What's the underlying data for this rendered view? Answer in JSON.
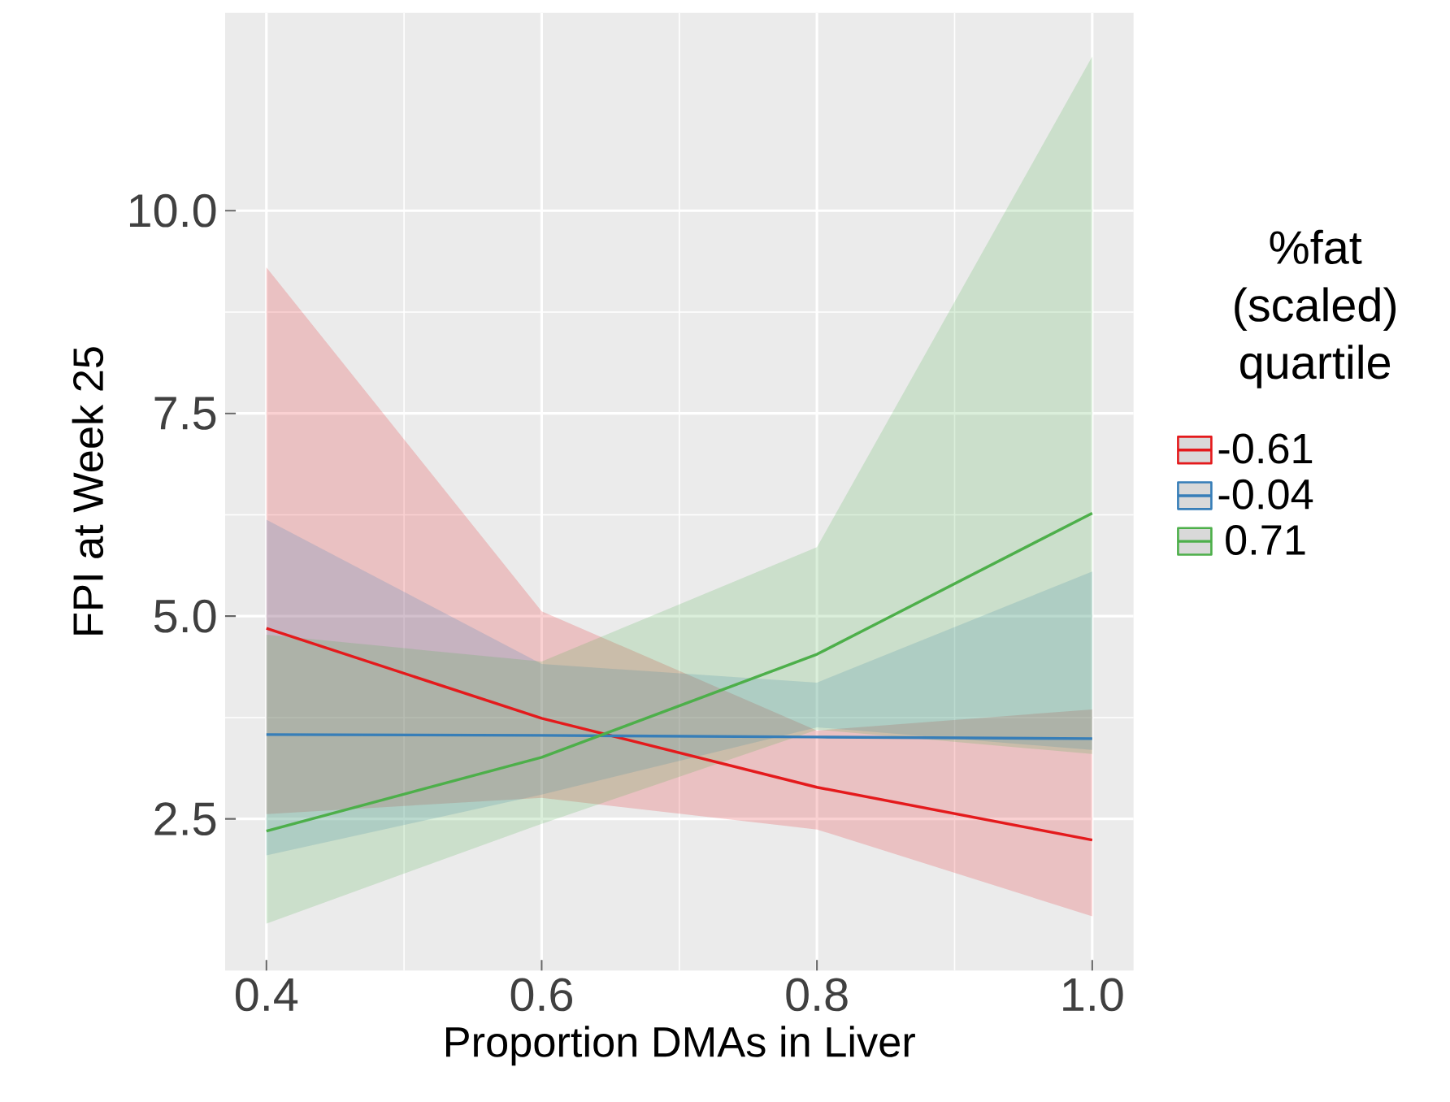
{
  "chart_data": {
    "type": "line",
    "xlabel": "Proportion DMAs in Liver",
    "ylabel": "FPI at Week 25",
    "legend_title": "%fat (scaled) quartile",
    "x": [
      0.4,
      0.6,
      0.8,
      1.0
    ],
    "series": [
      {
        "name": "-0.61",
        "color": "#e41a1c",
        "values": [
          4.85,
          3.74,
          2.89,
          2.24
        ],
        "lower": [
          2.56,
          2.76,
          2.37,
          1.3
        ],
        "upper": [
          9.3,
          5.06,
          3.59,
          3.85
        ]
      },
      {
        "name": "-0.04",
        "color": "#377eb8",
        "values": [
          3.54,
          3.53,
          3.51,
          3.49
        ],
        "lower": [
          2.05,
          2.8,
          3.63,
          3.35
        ],
        "upper": [
          6.19,
          4.41,
          4.18,
          5.55
        ]
      },
      {
        "name": "0.71",
        "color": "#4daf4a",
        "values": [
          2.35,
          3.26,
          4.53,
          6.27
        ],
        "lower": [
          1.21,
          2.44,
          3.6,
          3.3
        ],
        "upper": [
          4.77,
          4.44,
          5.85,
          11.9
        ]
      }
    ],
    "xlim": [
      0.37,
      1.03
    ],
    "ylim": [
      0.63,
      12.44
    ],
    "xticks": [
      {
        "value": 0.4,
        "label": "0.4"
      },
      {
        "value": 0.6,
        "label": "0.6"
      },
      {
        "value": 0.8,
        "label": "0.8"
      },
      {
        "value": 1.0,
        "label": "1.0"
      }
    ],
    "yticks": [
      {
        "value": 2.5,
        "label": "2.5"
      },
      {
        "value": 5.0,
        "label": "5.0"
      },
      {
        "value": 7.5,
        "label": "7.5"
      },
      {
        "value": 10.0,
        "label": "10.0"
      }
    ],
    "grid": true,
    "legend": "right",
    "line_style": "solid",
    "marker": "none"
  }
}
